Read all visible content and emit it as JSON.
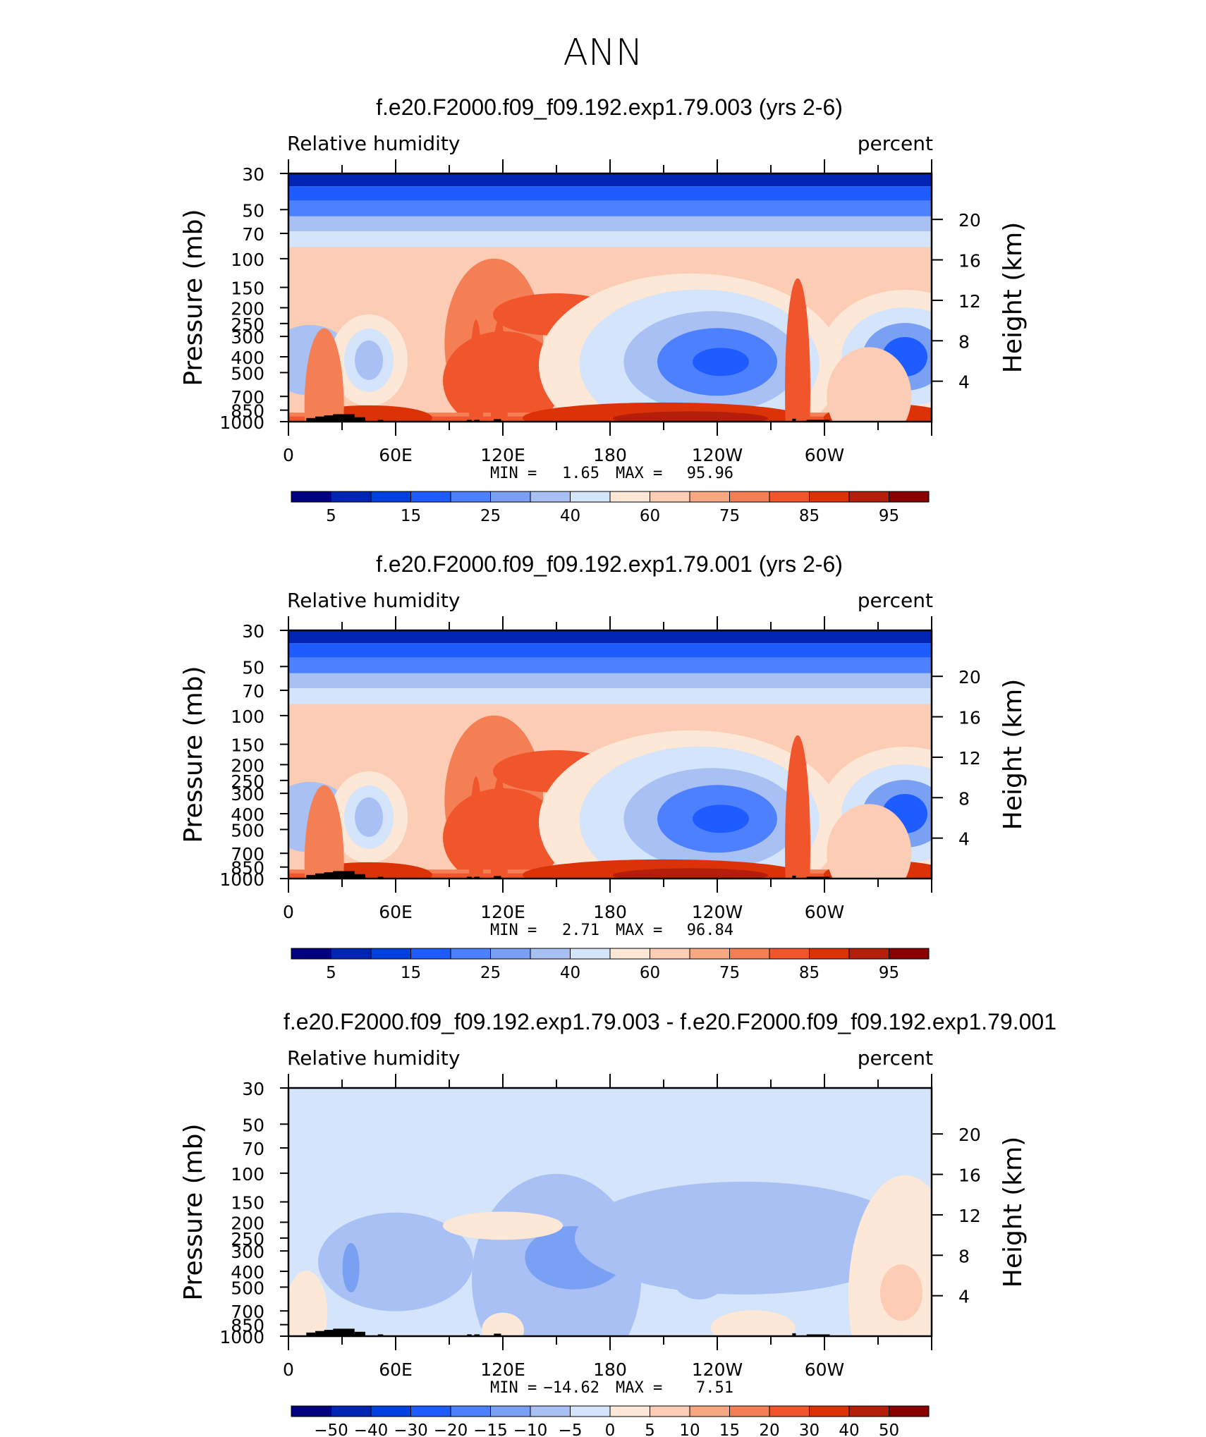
{
  "figure_title": "ANN",
  "colors": {
    "abs_scale": [
      "#000080",
      "#0024b4",
      "#0040e0",
      "#1e5cff",
      "#4c80ff",
      "#7aa0f4",
      "#a8c0f4",
      "#d4e4fa",
      "#fde8d8",
      "#fcccb4",
      "#f8a880",
      "#f57f55",
      "#f0552c",
      "#dc3208",
      "#b41e0a",
      "#8a0000"
    ],
    "diff_scale": [
      "#000080",
      "#0024b4",
      "#0040e0",
      "#1e5cff",
      "#4c80ff",
      "#7aa0f4",
      "#a8c0f4",
      "#d4e4fa",
      "#fde8d8",
      "#fcccb4",
      "#f8a880",
      "#f57f55",
      "#f0552c",
      "#dc3208",
      "#b41e0a",
      "#8a0000"
    ],
    "terrain": "#000000"
  },
  "chart_data": [
    {
      "type": "heatmap",
      "title": "f.e20.F2000.f09_f09.192.exp1.79.003 (yrs 2-6)",
      "variable_label": "Relative humidity",
      "units_label": "percent",
      "ylabel": "Pressure (mb)",
      "y2label": "Height (km)",
      "x_ticks": [
        "0",
        "60E",
        "120E",
        "180",
        "120W",
        "60W"
      ],
      "y_ticks": [
        "30",
        "50",
        "70",
        "100",
        "150",
        "200",
        "250",
        "300",
        "400",
        "500",
        "700",
        "850",
        "1000"
      ],
      "y2_ticks": [
        "20",
        "16",
        "12",
        "8",
        "4"
      ],
      "stats": {
        "min_label": "MIN =",
        "min": "1.65",
        "max_label": "MAX =",
        "max": "95.96"
      },
      "colorbar_labels": [
        "5",
        "15",
        "25",
        "40",
        "60",
        "75",
        "85",
        "95"
      ]
    },
    {
      "type": "heatmap",
      "title": "f.e20.F2000.f09_f09.192.exp1.79.001 (yrs 2-6)",
      "variable_label": "Relative humidity",
      "units_label": "percent",
      "ylabel": "Pressure (mb)",
      "y2label": "Height (km)",
      "x_ticks": [
        "0",
        "60E",
        "120E",
        "180",
        "120W",
        "60W"
      ],
      "y_ticks": [
        "30",
        "50",
        "70",
        "100",
        "150",
        "200",
        "250",
        "300",
        "400",
        "500",
        "700",
        "850",
        "1000"
      ],
      "y2_ticks": [
        "20",
        "16",
        "12",
        "8",
        "4"
      ],
      "stats": {
        "min_label": "MIN =",
        "min": "2.71",
        "max_label": "MAX =",
        "max": "96.84"
      },
      "colorbar_labels": [
        "5",
        "15",
        "25",
        "40",
        "60",
        "75",
        "85",
        "95"
      ]
    },
    {
      "type": "heatmap",
      "title": "f.e20.F2000.f09_f09.192.exp1.79.003 - f.e20.F2000.f09_f09.192.exp1.79.001",
      "variable_label": "Relative humidity",
      "units_label": "percent",
      "ylabel": "Pressure (mb)",
      "y2label": "Height (km)",
      "x_ticks": [
        "0",
        "60E",
        "120E",
        "180",
        "120W",
        "60W"
      ],
      "y_ticks": [
        "30",
        "50",
        "70",
        "100",
        "150",
        "200",
        "250",
        "300",
        "400",
        "500",
        "700",
        "850",
        "1000"
      ],
      "y2_ticks": [
        "20",
        "16",
        "12",
        "8",
        "4"
      ],
      "stats": {
        "min_label": "MIN =",
        "min": "−14.62",
        "max_label": "MAX =",
        "max": "7.51"
      },
      "colorbar_labels": [
        "−50",
        "−40",
        "−30",
        "−20",
        "−15",
        "−10",
        "−5",
        "0",
        "5",
        "10",
        "15",
        "20",
        "30",
        "40",
        "50"
      ]
    }
  ]
}
